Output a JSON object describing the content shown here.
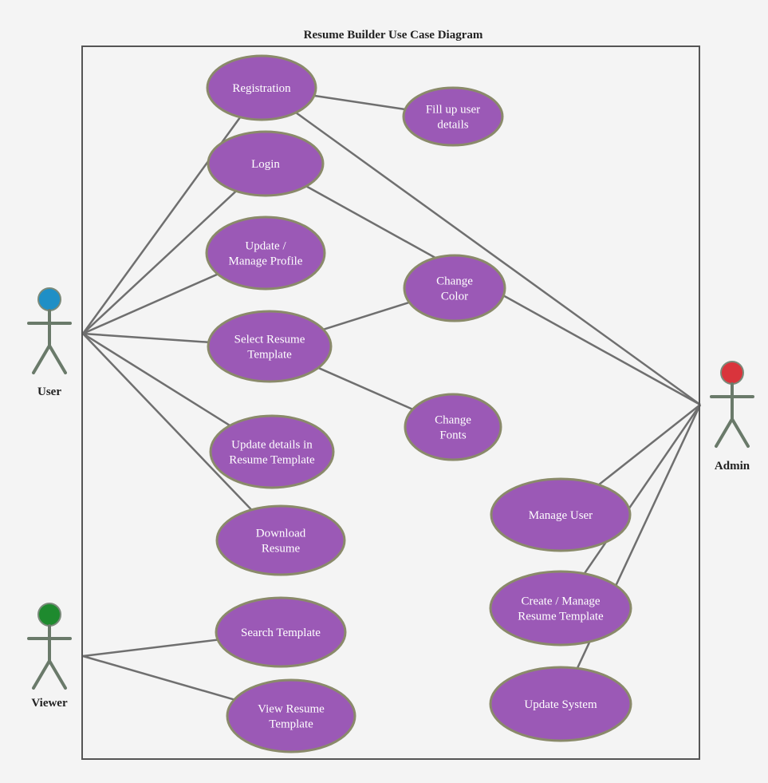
{
  "diagram": {
    "title": "Resume Builder Use Case Diagram",
    "colors": {
      "usecase_fill": "#9b59b6",
      "usecase_stroke": "#8a8a6a",
      "line": "#6f6f6f",
      "boundary": "#555555",
      "background": "#f4f4f4",
      "user_head": "#1f8fc6",
      "viewer_head": "#1e8a2e",
      "admin_head": "#d9343c"
    },
    "actors": [
      {
        "id": "user",
        "label": "User",
        "head_color": "#1f8fc6"
      },
      {
        "id": "viewer",
        "label": "Viewer",
        "head_color": "#1e8a2e"
      },
      {
        "id": "admin",
        "label": "Admin",
        "head_color": "#d9343c"
      }
    ],
    "use_cases": [
      {
        "id": "registration",
        "lines": [
          "Registration"
        ]
      },
      {
        "id": "fill-details",
        "lines": [
          "Fill up user",
          "details"
        ]
      },
      {
        "id": "login",
        "lines": [
          "Login"
        ]
      },
      {
        "id": "update-profile",
        "lines": [
          "Update /",
          "Manage Profile"
        ]
      },
      {
        "id": "change-color",
        "lines": [
          "Change",
          "Color"
        ]
      },
      {
        "id": "select-template",
        "lines": [
          "Select Resume",
          "Template"
        ]
      },
      {
        "id": "change-fonts",
        "lines": [
          "Change",
          "Fonts"
        ]
      },
      {
        "id": "update-details",
        "lines": [
          "Update details in",
          "Resume Template"
        ]
      },
      {
        "id": "download-resume",
        "lines": [
          "Download",
          "Resume"
        ]
      },
      {
        "id": "search-template",
        "lines": [
          "Search Template"
        ]
      },
      {
        "id": "view-template",
        "lines": [
          "View Resume",
          "Template"
        ]
      },
      {
        "id": "manage-user",
        "lines": [
          "Manage User"
        ]
      },
      {
        "id": "create-template",
        "lines": [
          "Create / Manage",
          "Resume Template"
        ]
      },
      {
        "id": "update-system",
        "lines": [
          "Update System"
        ]
      }
    ],
    "associations": [
      {
        "from": "user",
        "to": "registration"
      },
      {
        "from": "user",
        "to": "login"
      },
      {
        "from": "user",
        "to": "update-profile"
      },
      {
        "from": "user",
        "to": "select-template"
      },
      {
        "from": "user",
        "to": "update-details"
      },
      {
        "from": "user",
        "to": "download-resume"
      },
      {
        "from": "viewer",
        "to": "search-template"
      },
      {
        "from": "viewer",
        "to": "view-template"
      },
      {
        "from": "admin",
        "to": "registration"
      },
      {
        "from": "admin",
        "to": "login"
      },
      {
        "from": "admin",
        "to": "manage-user"
      },
      {
        "from": "admin",
        "to": "create-template"
      },
      {
        "from": "admin",
        "to": "update-system"
      },
      {
        "from": "registration",
        "to": "fill-details"
      },
      {
        "from": "select-template",
        "to": "change-color"
      },
      {
        "from": "select-template",
        "to": "change-fonts"
      }
    ]
  }
}
